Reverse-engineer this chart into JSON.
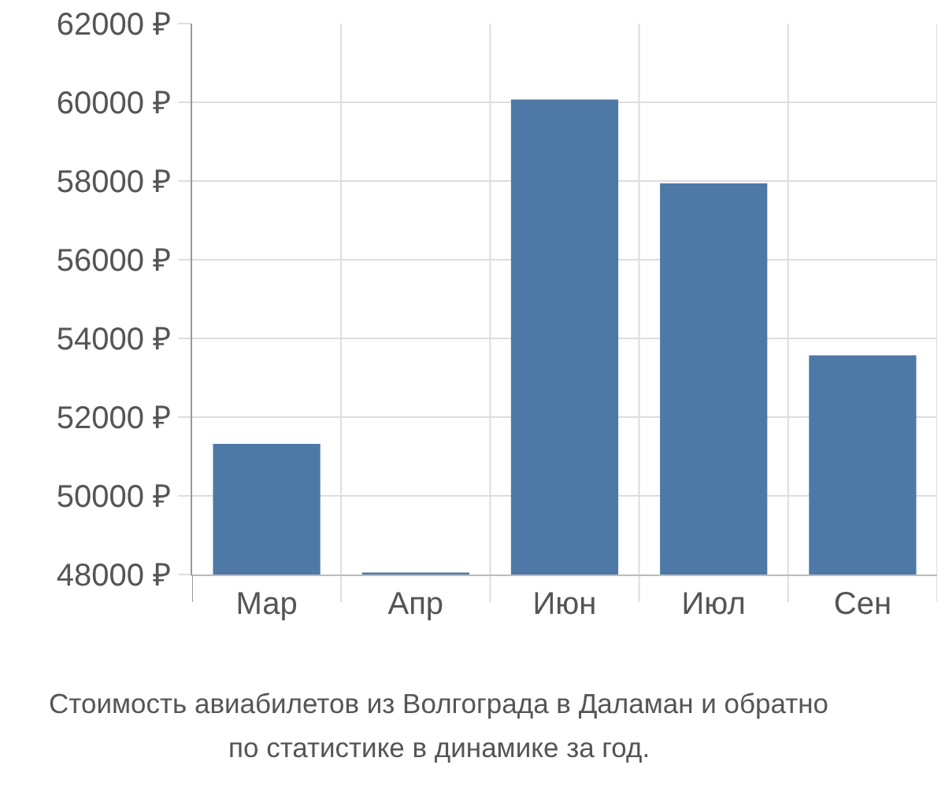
{
  "chart_data": {
    "type": "bar",
    "categories": [
      "Мар",
      "Апр",
      "Июн",
      "Июл",
      "Сен"
    ],
    "values": [
      51320,
      48050,
      60070,
      57940,
      53570
    ],
    "color": "#4e79a7",
    "ylim": [
      48000,
      62000
    ],
    "yticks": [
      {
        "value": 48000,
        "label": "48000 ₽"
      },
      {
        "value": 50000,
        "label": "50000 ₽"
      },
      {
        "value": 52000,
        "label": "52000 ₽"
      },
      {
        "value": 54000,
        "label": "54000 ₽"
      },
      {
        "value": 56000,
        "label": "56000 ₽"
      },
      {
        "value": 58000,
        "label": "58000 ₽"
      },
      {
        "value": 60000,
        "label": "60000 ₽"
      },
      {
        "value": 62000,
        "label": "62000 ₽"
      }
    ],
    "grid": true,
    "annotations": [
      "Стоимость авиабилетов из Волгограда в Даламан и обратно",
      "по статистике в динамике за год."
    ]
  }
}
